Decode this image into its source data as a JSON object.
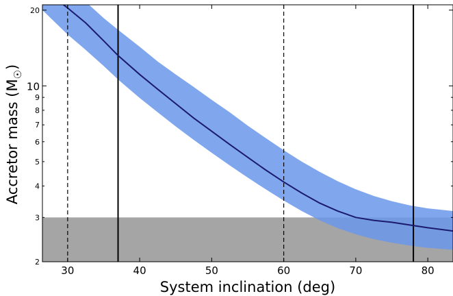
{
  "chart_data": {
    "type": "area",
    "xlabel": "System inclination (deg)",
    "ylabel": "Accretor mass (M",
    "ylabel_symbol": "☉",
    "ylabel_close": ")",
    "xlim": [
      26.5,
      83.5
    ],
    "ylim": [
      2.0,
      21.0
    ],
    "yscale": "log",
    "xticks": [
      30,
      40,
      50,
      60,
      70,
      80
    ],
    "yticks_major": [
      10,
      20
    ],
    "yticks_minor": [
      2,
      3,
      4,
      5,
      6,
      7,
      8,
      9
    ],
    "grid": false,
    "curve": {
      "x": [
        26.5,
        28.5,
        30,
        32.5,
        35,
        37,
        40,
        42.5,
        45,
        47.5,
        50,
        52.5,
        55,
        57.5,
        60,
        62.5,
        65,
        67.5,
        70,
        72.5,
        75,
        77.5,
        80,
        83.5
      ],
      "y": [
        24.6,
        22.0,
        20.4,
        17.8,
        15.1,
        13.2,
        11.1,
        9.7,
        8.5,
        7.45,
        6.6,
        5.85,
        5.2,
        4.63,
        4.15,
        3.75,
        3.42,
        3.18,
        3.0,
        2.92,
        2.87,
        2.8,
        2.73,
        2.65
      ],
      "color": "#1a1a6e"
    },
    "band": {
      "x": [
        26.5,
        28.5,
        30,
        32.5,
        35,
        37,
        40,
        42.5,
        45,
        47.5,
        50,
        52.5,
        55,
        57.5,
        60,
        62.5,
        65,
        67.5,
        70,
        72.5,
        75,
        77.5,
        80,
        83.5
      ],
      "lower": [
        20.0,
        17.6,
        16.0,
        13.9,
        12.0,
        10.6,
        8.95,
        7.85,
        6.9,
        6.1,
        5.42,
        4.83,
        4.32,
        3.88,
        3.5,
        3.18,
        2.92,
        2.72,
        2.57,
        2.46,
        2.38,
        2.32,
        2.27,
        2.23
      ],
      "upper": [
        29.6,
        26.5,
        24.5,
        21.6,
        18.6,
        16.7,
        14.3,
        12.5,
        11.1,
        9.9,
        8.8,
        7.85,
        6.95,
        6.2,
        5.55,
        5.0,
        4.55,
        4.18,
        3.88,
        3.65,
        3.48,
        3.35,
        3.26,
        3.18
      ],
      "color": "#6a96ea"
    },
    "shaded_region": {
      "x_range": [
        26.5,
        83.5
      ],
      "y_range": [
        2.0,
        3.0
      ],
      "color": "#8c8c8c"
    },
    "vertical_lines": [
      {
        "x": 30,
        "style": "dashed"
      },
      {
        "x": 37,
        "style": "solid"
      },
      {
        "x": 60,
        "style": "dashed"
      },
      {
        "x": 78,
        "style": "solid"
      }
    ]
  }
}
